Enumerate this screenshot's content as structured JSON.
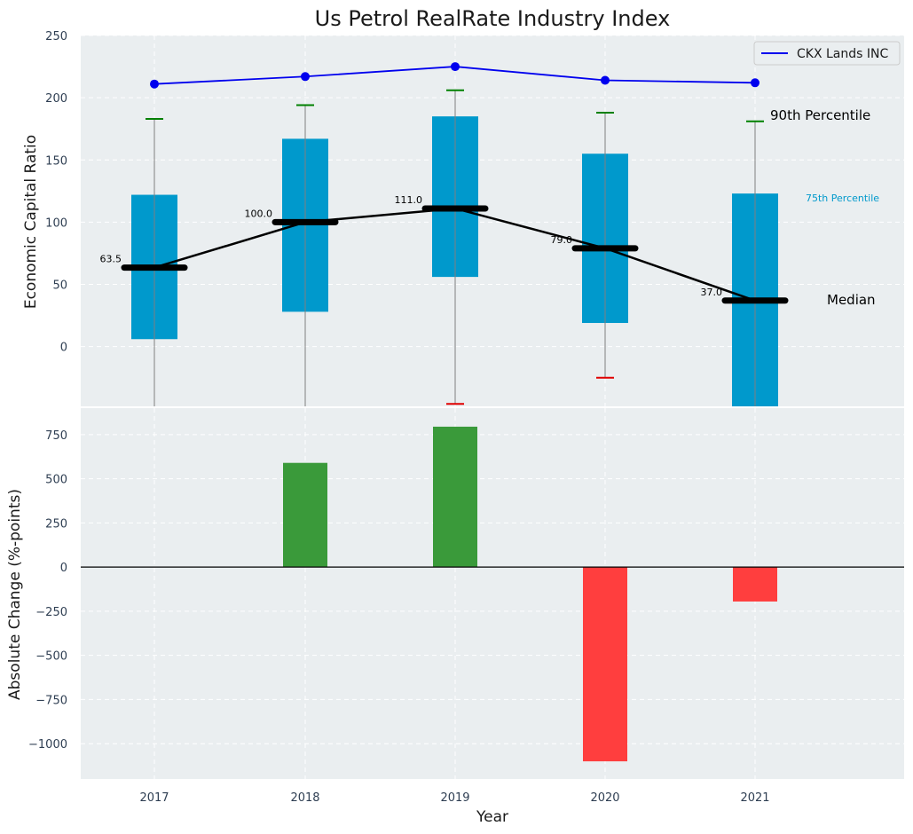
{
  "chart_data": {
    "title": "Us Petrol RealRate Industry Index",
    "xlabel": "Year",
    "years": [
      "2017",
      "2018",
      "2019",
      "2020",
      "2021"
    ],
    "top_panel": {
      "type": "box",
      "ylabel": "Economic Capital Ratio",
      "ylim": [
        -48,
        250
      ],
      "yticks": [
        0,
        50,
        100,
        150,
        200,
        250
      ],
      "percentile_25": [
        6,
        28,
        56,
        19,
        -48
      ],
      "percentile_75": [
        122,
        167,
        185,
        155,
        123
      ],
      "percentile_90": [
        183,
        194,
        206,
        188,
        181
      ],
      "percentile_10": [
        -48,
        -48,
        -46,
        -25,
        -48
      ],
      "medians": [
        63.5,
        100.0,
        111.0,
        79.0,
        37.0
      ],
      "median_labels": [
        "63.5",
        "100.0",
        "111.0",
        "79.0",
        "37.0"
      ],
      "company_series": {
        "name": "CKX Lands INC",
        "values": [
          211,
          217,
          225,
          214,
          212
        ]
      },
      "annotations": {
        "p90": "90th Percentile",
        "p75": "75th Percentile",
        "median": "Median"
      },
      "colors": {
        "box": "#0099cc",
        "median": "#000000",
        "company": "#0000ee",
        "whisker_upper": "#008000",
        "whisker_lower": "#e00000",
        "whisker_line": "#808080"
      }
    },
    "bottom_panel": {
      "type": "bar",
      "ylabel": "Absolute Change (%-points)",
      "ylim": [
        -1200,
        900
      ],
      "yticks": [
        -1000,
        -750,
        -500,
        -250,
        0,
        250,
        500,
        750
      ],
      "ytick_labels": [
        "−1000",
        "−750",
        "−500",
        "−250",
        "0",
        "250",
        "500",
        "750"
      ],
      "values": [
        null,
        590,
        795,
        -1100,
        -195
      ],
      "colors": {
        "positive": "#3a9a3a",
        "negative": "#ff3e3e"
      }
    }
  }
}
